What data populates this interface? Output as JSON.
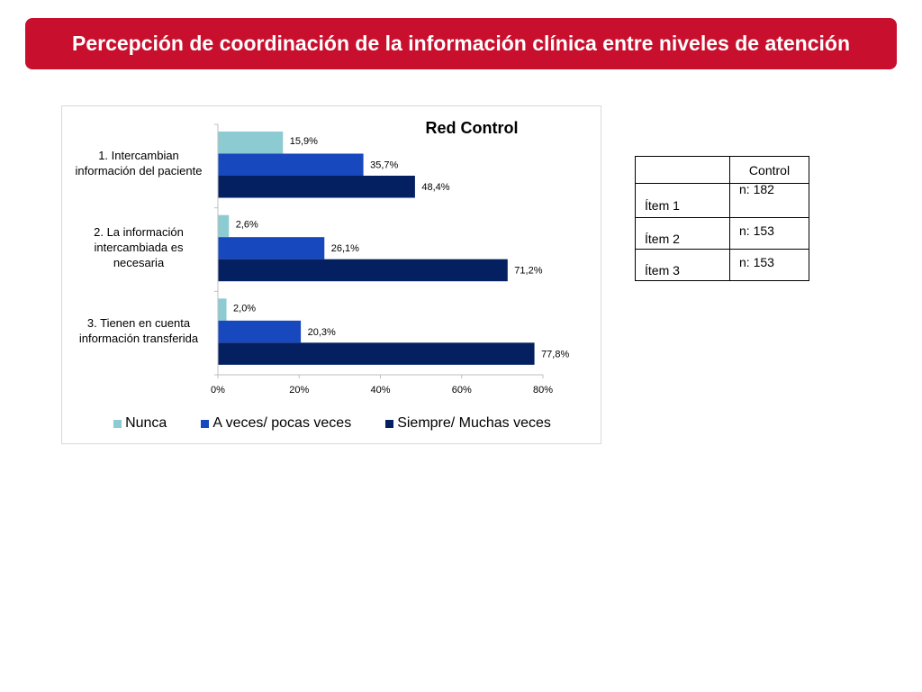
{
  "page": {
    "title": "Percepción de coordinación de la información clínica entre niveles de atención",
    "accent_color": "#c8102e"
  },
  "chart_data": {
    "type": "bar",
    "orientation": "horizontal",
    "title": "Red Control",
    "categories": [
      "1. Intercambian información del paciente",
      "2. La información intercambiada es necesaria",
      "3. Tienen en cuenta información transferida"
    ],
    "category_lines": [
      [
        "1. Intercambian",
        "información del paciente"
      ],
      [
        "2. La información",
        "intercambiada es",
        "necesaria"
      ],
      [
        "3. Tienen en cuenta",
        "información transferida"
      ]
    ],
    "series": [
      {
        "name": "Nunca",
        "color": "#8ccbd2",
        "values": [
          15.9,
          2.6,
          2.0
        ],
        "labels": [
          "15,9%",
          "2,6%",
          "2,0%"
        ]
      },
      {
        "name": "A veces/ pocas veces",
        "color": "#1848be",
        "values": [
          35.7,
          26.1,
          20.3
        ],
        "labels": [
          "35,7%",
          "26,1%",
          "20,3%"
        ]
      },
      {
        "name": "Siempre/ Muchas veces",
        "color": "#042060",
        "values": [
          48.4,
          71.2,
          77.8
        ],
        "labels": [
          "48,4%",
          "71,2%",
          "77,8%"
        ]
      }
    ],
    "xlim": [
      0,
      80
    ],
    "x_ticks": [
      0,
      20,
      40,
      60,
      80
    ],
    "x_tick_labels": [
      "0%",
      "20%",
      "40%",
      "60%",
      "80%"
    ],
    "grid": false,
    "legend": "bottom"
  },
  "table": {
    "header": [
      "",
      "Control"
    ],
    "rows": [
      {
        "item": "Ítem 1",
        "value": "n: 182"
      },
      {
        "item": "Ítem 2",
        "value": "n: 153"
      },
      {
        "item": "Ítem 3",
        "value": "n: 153"
      }
    ]
  }
}
